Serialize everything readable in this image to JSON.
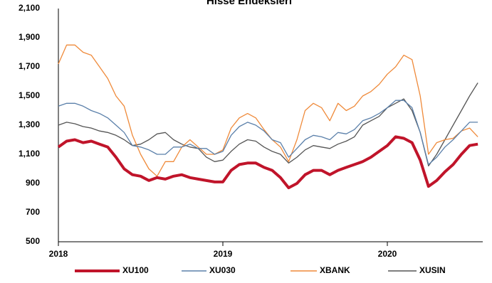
{
  "chart_data": {
    "type": "line",
    "title": "Hisse Endeksleri",
    "x": [
      2018.0,
      2018.05,
      2018.1,
      2018.15,
      2018.2,
      2018.25,
      2018.3,
      2018.35,
      2018.4,
      2018.45,
      2018.5,
      2018.55,
      2018.6,
      2018.65,
      2018.7,
      2018.75,
      2018.8,
      2018.85,
      2018.9,
      2018.95,
      2019.0,
      2019.05,
      2019.1,
      2019.15,
      2019.2,
      2019.25,
      2019.3,
      2019.35,
      2019.4,
      2019.45,
      2019.5,
      2019.55,
      2019.6,
      2019.65,
      2019.7,
      2019.75,
      2019.8,
      2019.85,
      2019.9,
      2019.95,
      2020.0,
      2020.05,
      2020.1,
      2020.15,
      2020.2,
      2020.25,
      2020.3,
      2020.35,
      2020.4,
      2020.45,
      2020.5,
      2020.55
    ],
    "series": [
      {
        "name": "XU100",
        "color": "#c0142a",
        "values": [
          1150,
          1190,
          1200,
          1180,
          1190,
          1170,
          1150,
          1080,
          1000,
          960,
          950,
          920,
          940,
          930,
          950,
          960,
          940,
          930,
          920,
          910,
          910,
          990,
          1030,
          1040,
          1040,
          1010,
          990,
          940,
          870,
          900,
          960,
          990,
          990,
          960,
          990,
          1010,
          1030,
          1050,
          1080,
          1120,
          1160,
          1220,
          1210,
          1180,
          1060,
          880,
          920,
          980,
          1030,
          1100,
          1160,
          1170
        ]
      },
      {
        "name": "XU030",
        "color": "#5b80aa",
        "values": [
          1430,
          1450,
          1450,
          1430,
          1400,
          1380,
          1350,
          1300,
          1250,
          1160,
          1150,
          1130,
          1100,
          1100,
          1150,
          1150,
          1170,
          1140,
          1140,
          1100,
          1120,
          1230,
          1290,
          1320,
          1300,
          1260,
          1200,
          1180,
          1080,
          1140,
          1200,
          1230,
          1220,
          1200,
          1250,
          1240,
          1270,
          1330,
          1350,
          1380,
          1420,
          1470,
          1470,
          1420,
          1250,
          1030,
          1080,
          1150,
          1200,
          1260,
          1320,
          1320
        ]
      },
      {
        "name": "XBANK",
        "color": "#ef8a3a",
        "values": [
          1720,
          1850,
          1850,
          1800,
          1780,
          1700,
          1620,
          1500,
          1430,
          1230,
          1100,
          1000,
          950,
          1050,
          1050,
          1150,
          1200,
          1150,
          1100,
          1100,
          1130,
          1280,
          1350,
          1380,
          1350,
          1270,
          1200,
          1150,
          1050,
          1200,
          1400,
          1450,
          1420,
          1330,
          1450,
          1400,
          1430,
          1500,
          1530,
          1580,
          1650,
          1700,
          1780,
          1750,
          1500,
          1100,
          1180,
          1200,
          1210,
          1260,
          1280,
          1220
        ]
      },
      {
        "name": "XUSIN",
        "color": "#555555",
        "values": [
          1300,
          1320,
          1310,
          1290,
          1280,
          1260,
          1250,
          1230,
          1200,
          1160,
          1170,
          1200,
          1240,
          1250,
          1200,
          1170,
          1150,
          1140,
          1080,
          1050,
          1060,
          1120,
          1170,
          1200,
          1190,
          1150,
          1120,
          1100,
          1040,
          1080,
          1130,
          1160,
          1150,
          1140,
          1170,
          1190,
          1220,
          1300,
          1330,
          1360,
          1420,
          1450,
          1480,
          1400,
          1250,
          1020,
          1100,
          1200,
          1300,
          1400,
          1500,
          1590
        ]
      }
    ],
    "xlim": [
      2018,
      2020.58
    ],
    "xticks": [
      2018,
      2019,
      2020
    ],
    "ylim": [
      500,
      2100
    ],
    "yticks": [
      500,
      700,
      900,
      {
        "value": 1100,
        "label": "1,100"
      },
      {
        "value": 1300,
        "label": "1,300"
      },
      {
        "value": 1500,
        "label": "1,500"
      },
      {
        "value": 1700,
        "label": "1,700"
      },
      {
        "value": 1900,
        "label": "1,900"
      },
      {
        "value": 2100,
        "label": "2,100"
      }
    ],
    "legend": "bottom",
    "grid": false
  }
}
